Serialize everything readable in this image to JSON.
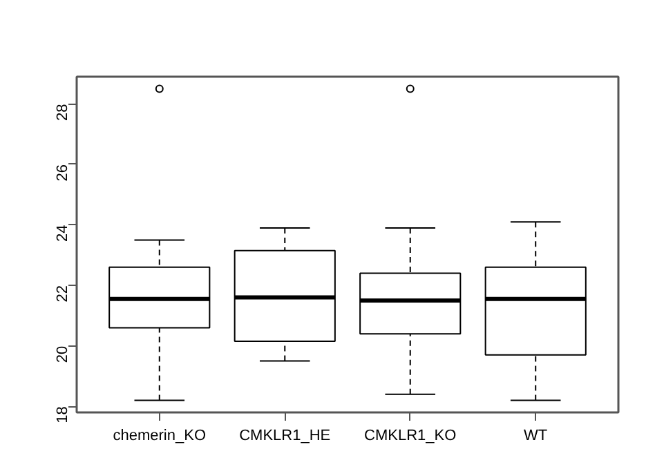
{
  "chart_data": {
    "type": "box",
    "categories": [
      "chemerin_KO",
      "CMKLR1_HE",
      "CMKLR1_KO",
      "WT"
    ],
    "boxes": [
      {
        "low": 18.2,
        "q1": 20.6,
        "median": 21.55,
        "q3": 22.6,
        "high": 23.5,
        "outliers": [
          28.5
        ]
      },
      {
        "low": 19.5,
        "q1": 20.15,
        "median": 21.6,
        "q3": 23.15,
        "high": 23.9
      },
      {
        "low": 18.4,
        "q1": 20.4,
        "median": 21.5,
        "q3": 22.4,
        "high": 23.9,
        "outliers": [
          28.5
        ]
      },
      {
        "low": 18.2,
        "q1": 19.7,
        "median": 21.55,
        "q3": 22.6,
        "high": 24.1
      }
    ],
    "color": "#000000",
    "ylim": [
      17.8,
      28.9
    ],
    "yticks": [
      18,
      20,
      22,
      24,
      26,
      28
    ],
    "grid": false
  }
}
